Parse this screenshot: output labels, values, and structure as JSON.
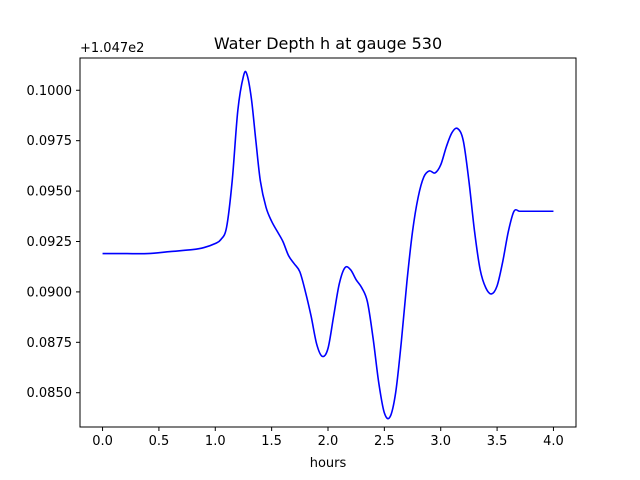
{
  "chart_data": {
    "type": "line",
    "title": "Water Depth h at gauge 530",
    "xlabel": "hours",
    "ylabel": "",
    "offset_text": "+1.047e2",
    "xlim": [
      -0.2,
      4.2
    ],
    "ylim": [
      0.0833,
      0.1016
    ],
    "x_ticks": [
      0.0,
      0.5,
      1.0,
      1.5,
      2.0,
      2.5,
      3.0,
      3.5,
      4.0
    ],
    "x_tick_labels": [
      "0.0",
      "0.5",
      "1.0",
      "1.5",
      "2.0",
      "2.5",
      "3.0",
      "3.5",
      "4.0"
    ],
    "y_ticks": [
      0.085,
      0.0875,
      0.09,
      0.0925,
      0.095,
      0.0975,
      0.1
    ],
    "y_tick_labels": [
      "0.0850",
      "0.0875",
      "0.0900",
      "0.0925",
      "0.0950",
      "0.0975",
      "0.1000"
    ],
    "grid": false,
    "series": [
      {
        "color": "#0000ff",
        "x": [
          0.0,
          0.2,
          0.4,
          0.6,
          0.8,
          0.9,
          1.0,
          1.05,
          1.1,
          1.15,
          1.2,
          1.25,
          1.28,
          1.32,
          1.36,
          1.4,
          1.45,
          1.5,
          1.55,
          1.6,
          1.65,
          1.7,
          1.75,
          1.8,
          1.85,
          1.9,
          1.95,
          2.0,
          2.05,
          2.1,
          2.15,
          2.2,
          2.25,
          2.3,
          2.35,
          2.4,
          2.45,
          2.5,
          2.55,
          2.6,
          2.65,
          2.7,
          2.75,
          2.8,
          2.85,
          2.9,
          2.95,
          3.0,
          3.05,
          3.1,
          3.15,
          3.2,
          3.25,
          3.3,
          3.35,
          3.4,
          3.45,
          3.5,
          3.55,
          3.6,
          3.65,
          3.7,
          3.75,
          3.8,
          3.85,
          3.9,
          3.95,
          4.0
        ],
        "y": [
          0.0919,
          0.0919,
          0.0919,
          0.092,
          0.0921,
          0.0922,
          0.0924,
          0.0926,
          0.0932,
          0.0955,
          0.099,
          0.1007,
          0.1008,
          0.0996,
          0.0975,
          0.0955,
          0.0942,
          0.0935,
          0.093,
          0.0925,
          0.0918,
          0.0914,
          0.091,
          0.09,
          0.0888,
          0.0874,
          0.0868,
          0.0872,
          0.0888,
          0.0904,
          0.0912,
          0.0911,
          0.0906,
          0.0902,
          0.0895,
          0.0877,
          0.0855,
          0.084,
          0.0838,
          0.085,
          0.0875,
          0.0905,
          0.093,
          0.0947,
          0.0957,
          0.096,
          0.0959,
          0.0963,
          0.0972,
          0.0979,
          0.0981,
          0.0975,
          0.0955,
          0.093,
          0.0911,
          0.0902,
          0.0899,
          0.0903,
          0.0915,
          0.093,
          0.094,
          0.094,
          0.094,
          0.094,
          0.094,
          0.094,
          0.094,
          0.094
        ]
      }
    ]
  }
}
